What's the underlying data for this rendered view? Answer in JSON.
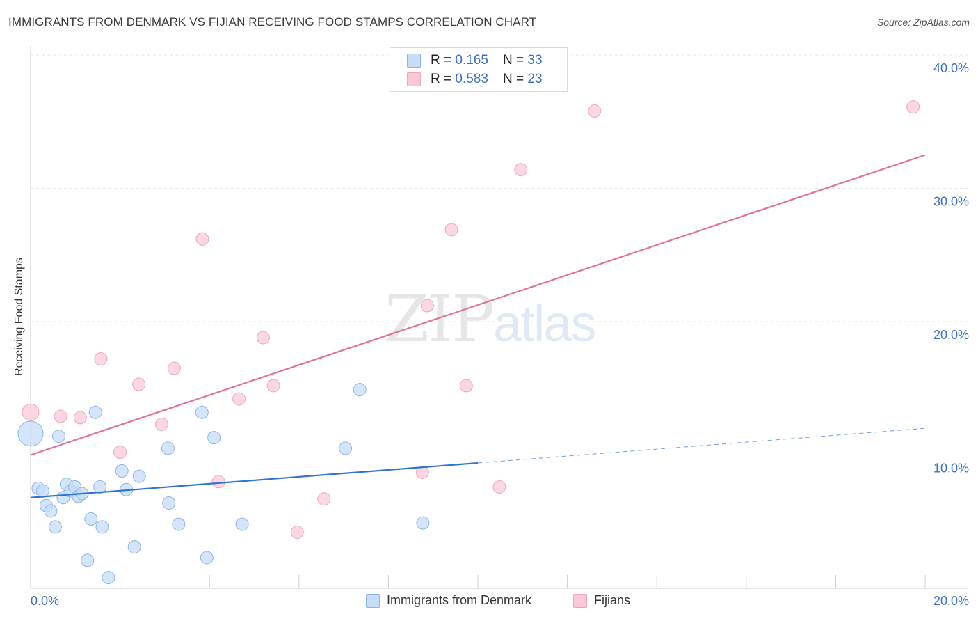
{
  "title": "IMMIGRANTS FROM DENMARK VS FIJIAN RECEIVING FOOD STAMPS CORRELATION CHART",
  "source": "Source: ZipAtlas.com",
  "watermark": {
    "zip": "ZIP",
    "atlas": "atlas"
  },
  "colors": {
    "blue_fill": "#c6dcf7",
    "blue_stroke": "#8ab4e8",
    "blue_line": "#2f75cf",
    "pink_fill": "#f9c9d7",
    "pink_stroke": "#f1a3bb",
    "pink_line": "#e46f98",
    "tick_text": "#3a6fc4",
    "grid": "#e6e6e6"
  },
  "legend_top": [
    {
      "r_label": "R = ",
      "r_value": "0.165",
      "n_label": "N = ",
      "n_value": "33",
      "color": "#c6dcf7",
      "stroke": "#8ab4e8"
    },
    {
      "r_label": "R = ",
      "r_value": "0.583",
      "n_label": "N = ",
      "n_value": "23",
      "color": "#f9c9d7",
      "stroke": "#f1a3bb"
    }
  ],
  "legend_bottom": [
    {
      "label": "Immigrants from Denmark",
      "color": "#c6dcf7",
      "stroke": "#8ab4e8"
    },
    {
      "label": "Fijians",
      "color": "#f9c9d7",
      "stroke": "#f1a3bb"
    }
  ],
  "chart_data": {
    "type": "scatter",
    "title": "IMMIGRANTS FROM DENMARK VS FIJIAN RECEIVING FOOD STAMPS CORRELATION CHART",
    "xlabel": "",
    "ylabel": "Receiving Food Stamps",
    "xlim": [
      0,
      20
    ],
    "ylim": [
      0,
      40
    ],
    "x_ticks": [
      {
        "value": 0,
        "label": "0.0%"
      },
      {
        "value": 20,
        "label": "20.0%"
      }
    ],
    "y_ticks": [
      {
        "value": 10,
        "label": "10.0%"
      },
      {
        "value": 20,
        "label": "20.0%"
      },
      {
        "value": 30,
        "label": "30.0%"
      },
      {
        "value": 40,
        "label": "40.0%"
      }
    ],
    "grid": true,
    "legend_position": "top-center",
    "series": [
      {
        "name": "Immigrants from Denmark",
        "r": 0.165,
        "n": 33,
        "points": [
          [
            0.0,
            11.6,
            18
          ],
          [
            0.17,
            7.5,
            9
          ],
          [
            0.27,
            7.3,
            9
          ],
          [
            0.35,
            6.2,
            9
          ],
          [
            0.45,
            5.8,
            9
          ],
          [
            0.55,
            4.6,
            9
          ],
          [
            0.63,
            11.4,
            9
          ],
          [
            0.73,
            6.8,
            9
          ],
          [
            0.8,
            7.8,
            9
          ],
          [
            0.9,
            7.3,
            9
          ],
          [
            0.99,
            7.6,
            9
          ],
          [
            1.07,
            6.9,
            9
          ],
          [
            1.15,
            7.1,
            9
          ],
          [
            1.27,
            2.1,
            9
          ],
          [
            1.35,
            5.2,
            9
          ],
          [
            1.45,
            13.2,
            9
          ],
          [
            1.55,
            7.6,
            9
          ],
          [
            1.6,
            4.6,
            9
          ],
          [
            1.74,
            0.8,
            9
          ],
          [
            2.04,
            8.8,
            9
          ],
          [
            2.14,
            7.4,
            9
          ],
          [
            2.32,
            3.1,
            9
          ],
          [
            2.43,
            8.4,
            9
          ],
          [
            3.07,
            10.5,
            9
          ],
          [
            3.09,
            6.4,
            9
          ],
          [
            3.31,
            4.8,
            9
          ],
          [
            3.83,
            13.2,
            9
          ],
          [
            3.94,
            2.3,
            9
          ],
          [
            4.1,
            11.3,
            9
          ],
          [
            4.73,
            4.8,
            9
          ],
          [
            7.04,
            10.5,
            9
          ],
          [
            7.36,
            14.9,
            9
          ],
          [
            8.77,
            4.9,
            9
          ]
        ],
        "trend": {
          "x0": 0,
          "y0": 6.8,
          "x1": 10,
          "y1": 9.4,
          "dashed_to_x": 20,
          "dashed_to_y": 12.0
        }
      },
      {
        "name": "Fijians",
        "r": 0.583,
        "n": 23,
        "points": [
          [
            0.0,
            13.2,
            12
          ],
          [
            0.67,
            12.9,
            9
          ],
          [
            1.11,
            12.8,
            9
          ],
          [
            1.57,
            17.2,
            9
          ],
          [
            2.0,
            10.2,
            9
          ],
          [
            2.42,
            15.3,
            9
          ],
          [
            2.93,
            12.3,
            9
          ],
          [
            3.21,
            16.5,
            9
          ],
          [
            3.84,
            26.2,
            9
          ],
          [
            4.2,
            8.0,
            9
          ],
          [
            4.66,
            14.2,
            9
          ],
          [
            5.2,
            18.8,
            9
          ],
          [
            5.43,
            15.2,
            9
          ],
          [
            5.96,
            4.2,
            9
          ],
          [
            6.56,
            6.7,
            9
          ],
          [
            8.76,
            8.7,
            9
          ],
          [
            8.87,
            21.2,
            9
          ],
          [
            9.41,
            26.9,
            9
          ],
          [
            9.74,
            15.2,
            9
          ],
          [
            10.48,
            7.6,
            9
          ],
          [
            10.96,
            31.4,
            9
          ],
          [
            12.61,
            35.8,
            9
          ],
          [
            19.73,
            36.1,
            9
          ]
        ],
        "trend": {
          "x0": 0,
          "y0": 10.0,
          "x1": 20,
          "y1": 32.5
        }
      }
    ]
  }
}
